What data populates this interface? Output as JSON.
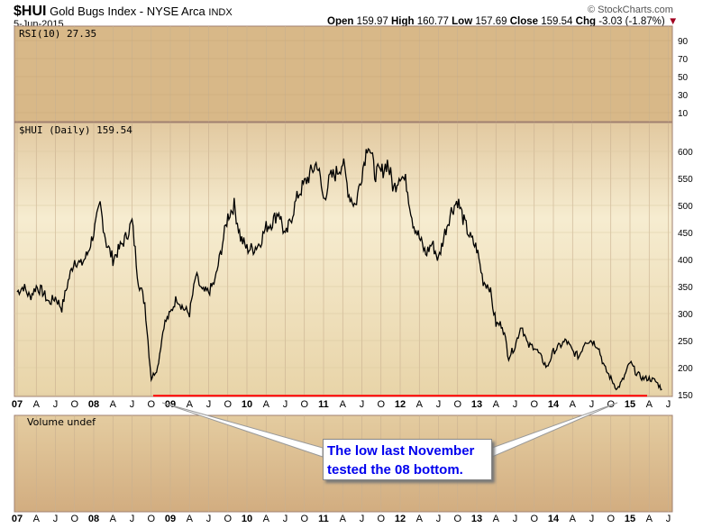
{
  "header": {
    "symbol": "$HUI",
    "name": "Gold Bugs Index - NYSE Arca",
    "exchange": "INDX",
    "date": "5-Jun-2015",
    "copyright": "© StockCharts.com",
    "open_label": "Open",
    "open": "159.97",
    "high_label": "High",
    "high": "160.77",
    "low_label": "Low",
    "low": "157.69",
    "close_label": "Close",
    "close": "159.54",
    "chg_label": "Chg",
    "chg": "-3.03 (-1.87%)"
  },
  "rsi_label": "RSI(10) 27.35",
  "price_label": "$HUI (Daily) 159.54",
  "volume_label": "Volume undef",
  "annotation": {
    "line1": "The low last November",
    "line2": "tested the 08 bottom."
  },
  "colors": {
    "rsi_bg": "#d8b888",
    "price_bg_top": "#f3e6c6",
    "support_line": "#ff0000",
    "note_text": "#0000ee"
  },
  "chart_data": {
    "type": "line",
    "title": "$HUI Gold Bugs Index (Daily)",
    "x_ticks": [
      "07",
      "A",
      "J",
      "O",
      "08",
      "A",
      "J",
      "O",
      "09",
      "A",
      "J",
      "O",
      "10",
      "A",
      "J",
      "O",
      "11",
      "A",
      "J",
      "O",
      "12",
      "A",
      "J",
      "O",
      "13",
      "A",
      "J",
      "O",
      "14",
      "A",
      "J",
      "O",
      "15",
      "A",
      "J"
    ],
    "rsi_ticks": [
      90,
      70,
      50,
      30,
      10
    ],
    "price_ticks": [
      600,
      550,
      500,
      450,
      400,
      350,
      300,
      250,
      200,
      150
    ],
    "ylim": [
      140,
      650
    ],
    "support_level": 148,
    "monthly_start": "2007-01",
    "values": [
      340,
      350,
      330,
      350,
      340,
      320,
      330,
      310,
      360,
      400,
      390,
      410,
      450,
      500,
      430,
      400,
      420,
      440,
      470,
      360,
      320,
      180,
      200,
      280,
      300,
      330,
      310,
      300,
      370,
      340,
      340,
      360,
      420,
      480,
      500,
      440,
      420,
      420,
      430,
      460,
      470,
      490,
      440,
      480,
      520,
      540,
      560,
      580,
      510,
      550,
      560,
      580,
      520,
      500,
      560,
      620,
      560,
      560,
      580,
      530,
      560,
      540,
      470,
      440,
      410,
      430,
      400,
      450,
      490,
      510,
      470,
      440,
      420,
      360,
      350,
      280,
      280,
      220,
      240,
      280,
      240,
      240,
      220,
      200,
      230,
      240,
      250,
      230,
      220,
      250,
      250,
      240,
      200,
      180,
      160,
      180,
      210,
      190,
      180,
      180,
      175,
      160
    ]
  }
}
